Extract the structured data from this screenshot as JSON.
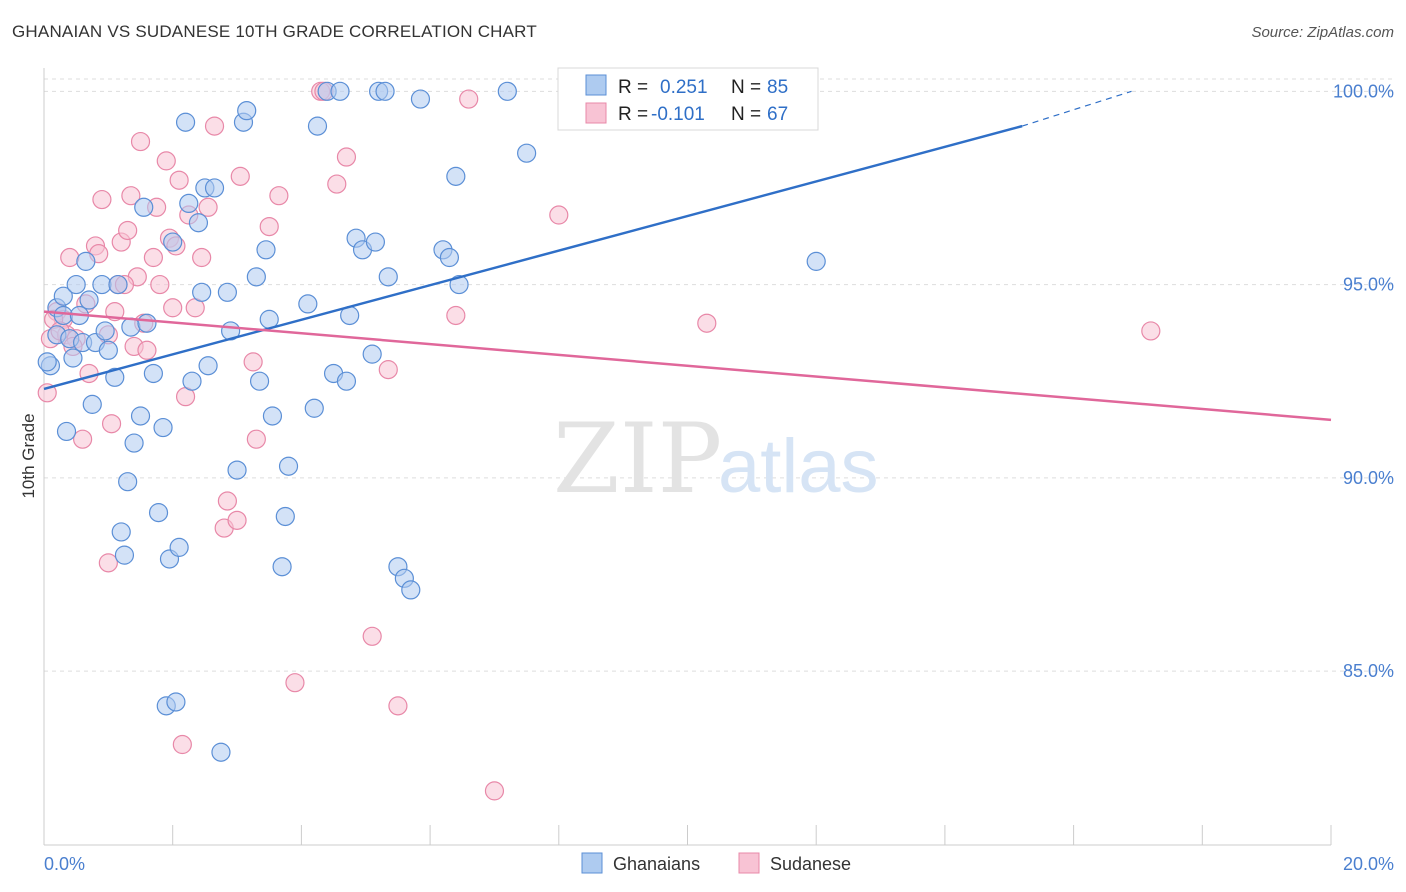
{
  "header": {
    "title": "GHANAIAN VS SUDANESE 10TH GRADE CORRELATION CHART",
    "source": "Source: ZipAtlas.com"
  },
  "watermark": {
    "zip": "ZIP",
    "atlas": "atlas"
  },
  "colors": {
    "blue_fill": "#aecbf0",
    "blue_stroke": "#5b8fd6",
    "blue_line": "#2f6fc7",
    "pink_fill": "#f8c3d4",
    "pink_stroke": "#e888a8",
    "pink_line": "#e0679a",
    "tick_label": "#4a7fcf",
    "grid": "#dddddd"
  },
  "legend_box": {
    "rows": [
      {
        "r_label": "R =",
        "r_value": "0.251",
        "n_label": "N =",
        "n_value": "85"
      },
      {
        "r_label": "R =",
        "r_value": "-0.101",
        "n_label": "N =",
        "n_value": "67"
      }
    ]
  },
  "chart_data": {
    "type": "scatter",
    "title": "GHANAIAN VS SUDANESE 10TH GRADE CORRELATION CHART",
    "xlabel": "",
    "ylabel": "10th Grade",
    "xlim": [
      0,
      20
    ],
    "ylim": [
      80.5,
      100.5
    ],
    "x_tick_labels": [
      {
        "value": 0,
        "label": "0.0%"
      },
      {
        "value": 20,
        "label": "20.0%"
      }
    ],
    "y_tick_labels": [
      {
        "value": 100,
        "label": "100.0%"
      },
      {
        "value": 95,
        "label": "95.0%"
      },
      {
        "value": 90,
        "label": "90.0%"
      },
      {
        "value": 85,
        "label": "85.0%"
      }
    ],
    "grid": true,
    "legend_position": "bottom-center",
    "series": [
      {
        "name": "Ghanaians",
        "color": "#aecbf0",
        "r": 0.251,
        "n": 85,
        "trend": {
          "x": [
            0,
            15.2
          ],
          "y": [
            92.3,
            99.1
          ],
          "dashed_to": [
            16.9,
            100.0
          ]
        },
        "points": [
          [
            0.1,
            92.9
          ],
          [
            0.2,
            93.7
          ],
          [
            0.2,
            94.4
          ],
          [
            0.3,
            94.7
          ],
          [
            0.3,
            94.2
          ],
          [
            0.35,
            91.2
          ],
          [
            0.4,
            93.6
          ],
          [
            0.45,
            93.1
          ],
          [
            0.5,
            95.0
          ],
          [
            0.55,
            94.2
          ],
          [
            0.6,
            93.5
          ],
          [
            0.65,
            95.6
          ],
          [
            0.7,
            94.6
          ],
          [
            0.75,
            91.9
          ],
          [
            0.8,
            93.5
          ],
          [
            0.9,
            95.0
          ],
          [
            0.95,
            93.8
          ],
          [
            1.0,
            93.3
          ],
          [
            1.1,
            92.6
          ],
          [
            1.15,
            95.0
          ],
          [
            1.2,
            88.6
          ],
          [
            1.25,
            88.0
          ],
          [
            1.3,
            89.9
          ],
          [
            1.35,
            93.9
          ],
          [
            1.4,
            90.9
          ],
          [
            1.5,
            91.6
          ],
          [
            1.55,
            97.0
          ],
          [
            1.6,
            94.0
          ],
          [
            1.7,
            92.7
          ],
          [
            1.78,
            89.1
          ],
          [
            1.85,
            91.3
          ],
          [
            1.9,
            84.1
          ],
          [
            1.95,
            87.9
          ],
          [
            2.0,
            96.1
          ],
          [
            2.05,
            84.2
          ],
          [
            2.1,
            88.2
          ],
          [
            2.2,
            99.2
          ],
          [
            2.25,
            97.1
          ],
          [
            2.3,
            92.5
          ],
          [
            2.4,
            96.6
          ],
          [
            2.45,
            94.8
          ],
          [
            2.5,
            97.5
          ],
          [
            2.55,
            92.9
          ],
          [
            2.65,
            97.5
          ],
          [
            2.75,
            82.9
          ],
          [
            2.85,
            94.8
          ],
          [
            2.9,
            93.8
          ],
          [
            3.0,
            90.2
          ],
          [
            3.1,
            99.2
          ],
          [
            3.15,
            99.5
          ],
          [
            3.3,
            95.2
          ],
          [
            3.35,
            92.5
          ],
          [
            3.45,
            95.9
          ],
          [
            3.5,
            94.1
          ],
          [
            3.55,
            91.6
          ],
          [
            3.7,
            87.7
          ],
          [
            3.75,
            89.0
          ],
          [
            3.8,
            90.3
          ],
          [
            4.1,
            94.5
          ],
          [
            4.2,
            91.8
          ],
          [
            4.25,
            99.1
          ],
          [
            4.4,
            100.0
          ],
          [
            4.5,
            92.7
          ],
          [
            4.6,
            100.0
          ],
          [
            4.7,
            92.5
          ],
          [
            4.75,
            94.2
          ],
          [
            4.85,
            96.2
          ],
          [
            4.95,
            95.9
          ],
          [
            5.1,
            93.2
          ],
          [
            5.15,
            96.1
          ],
          [
            5.2,
            100.0
          ],
          [
            5.3,
            100.0
          ],
          [
            5.35,
            95.2
          ],
          [
            5.5,
            87.7
          ],
          [
            5.6,
            87.4
          ],
          [
            5.7,
            87.1
          ],
          [
            5.85,
            99.8
          ],
          [
            6.2,
            95.9
          ],
          [
            6.3,
            95.7
          ],
          [
            6.4,
            97.8
          ],
          [
            6.45,
            95.0
          ],
          [
            7.2,
            100.0
          ],
          [
            7.5,
            98.4
          ],
          [
            12.0,
            95.6
          ],
          [
            0.05,
            93.0
          ]
        ]
      },
      {
        "name": "Sudanese",
        "color": "#f8c3d4",
        "r": -0.101,
        "n": 67,
        "trend": {
          "x": [
            0,
            20
          ],
          "y": [
            94.3,
            91.5
          ]
        },
        "points": [
          [
            0.05,
            92.2
          ],
          [
            0.1,
            93.6
          ],
          [
            0.2,
            94.3
          ],
          [
            0.3,
            94.1
          ],
          [
            0.35,
            93.7
          ],
          [
            0.4,
            95.7
          ],
          [
            0.5,
            93.6
          ],
          [
            0.6,
            91.0
          ],
          [
            0.65,
            94.5
          ],
          [
            0.7,
            92.7
          ],
          [
            0.8,
            96.0
          ],
          [
            0.85,
            95.8
          ],
          [
            0.9,
            97.2
          ],
          [
            1.0,
            93.7
          ],
          [
            1.0,
            87.8
          ],
          [
            1.05,
            91.4
          ],
          [
            1.1,
            94.3
          ],
          [
            1.15,
            95.0
          ],
          [
            1.2,
            96.1
          ],
          [
            1.3,
            96.4
          ],
          [
            1.35,
            97.3
          ],
          [
            1.4,
            93.4
          ],
          [
            1.45,
            95.2
          ],
          [
            1.5,
            98.7
          ],
          [
            1.55,
            94.0
          ],
          [
            1.6,
            93.3
          ],
          [
            1.7,
            95.7
          ],
          [
            1.75,
            97.0
          ],
          [
            1.8,
            95.0
          ],
          [
            1.9,
            98.2
          ],
          [
            1.95,
            96.2
          ],
          [
            2.0,
            94.4
          ],
          [
            2.05,
            96.0
          ],
          [
            2.1,
            97.7
          ],
          [
            2.15,
            83.1
          ],
          [
            2.2,
            92.1
          ],
          [
            2.25,
            96.8
          ],
          [
            2.35,
            94.4
          ],
          [
            2.45,
            95.7
          ],
          [
            2.55,
            97.0
          ],
          [
            2.65,
            99.1
          ],
          [
            2.8,
            88.7
          ],
          [
            2.85,
            89.4
          ],
          [
            3.0,
            88.9
          ],
          [
            3.05,
            97.8
          ],
          [
            3.25,
            93.0
          ],
          [
            3.3,
            91.0
          ],
          [
            3.5,
            96.5
          ],
          [
            3.65,
            97.3
          ],
          [
            3.9,
            84.7
          ],
          [
            4.3,
            100.0
          ],
          [
            4.35,
            100.0
          ],
          [
            4.55,
            97.6
          ],
          [
            4.7,
            98.3
          ],
          [
            5.1,
            85.9
          ],
          [
            5.35,
            92.8
          ],
          [
            5.5,
            84.1
          ],
          [
            6.4,
            94.2
          ],
          [
            6.6,
            99.8
          ],
          [
            7.0,
            81.9
          ],
          [
            8.0,
            96.8
          ],
          [
            10.3,
            94.0
          ],
          [
            17.2,
            93.8
          ],
          [
            0.15,
            94.1
          ],
          [
            0.25,
            93.8
          ],
          [
            0.45,
            93.4
          ],
          [
            1.25,
            95.0
          ]
        ]
      }
    ]
  }
}
